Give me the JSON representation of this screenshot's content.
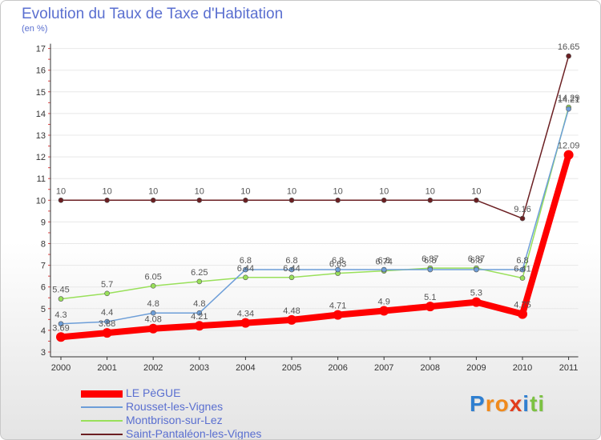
{
  "chart_data": {
    "type": "line",
    "title": "Evolution du Taux de Taxe d'Habitation",
    "subtitle": "(en %)",
    "xlabel": "",
    "ylabel": "",
    "categories": [
      "2000",
      "2001",
      "2002",
      "2003",
      "2004",
      "2005",
      "2006",
      "2007",
      "2008",
      "2009",
      "2010",
      "2011"
    ],
    "ylim": [
      3,
      17
    ],
    "yticks": [
      3,
      4,
      5,
      6,
      7,
      8,
      9,
      10,
      11,
      12,
      13,
      14,
      15,
      16,
      17
    ],
    "series": [
      {
        "name": "LE PèGUE",
        "color": "#ff0000",
        "values": [
          3.69,
          3.88,
          4.08,
          4.21,
          4.34,
          4.48,
          4.71,
          4.9,
          5.1,
          5.3,
          4.75,
          12.09
        ],
        "labels": [
          "3.69",
          "3.88",
          "4.08",
          "4.21",
          "4.34",
          "4.48",
          "4.71",
          "4.9",
          "5.1",
          "5.3",
          "4.75",
          "12.09"
        ]
      },
      {
        "name": "Rousset-les-Vignes",
        "color": "#6d9ed8",
        "values": [
          4.3,
          4.4,
          4.8,
          4.8,
          6.8,
          6.8,
          6.8,
          6.8,
          6.8,
          6.8,
          6.8,
          14.21
        ],
        "labels": [
          "4.3",
          "4.4",
          "4.8",
          "4.8",
          "6.8",
          "6.8",
          "6.8",
          "6.8",
          "6.8",
          "6.8",
          "6.8",
          "14.21"
        ]
      },
      {
        "name": "Montbrison-sur-Lez",
        "color": "#99e05a",
        "values": [
          5.45,
          5.7,
          6.05,
          6.25,
          6.44,
          6.44,
          6.63,
          6.74,
          6.87,
          6.87,
          6.41,
          14.29
        ],
        "labels": [
          "5.45",
          "5.7",
          "6.05",
          "6.25",
          "6.44",
          "6.44",
          "6.63",
          "6.74",
          "6.87",
          "6.87",
          "6.41",
          "14.29"
        ]
      },
      {
        "name": "Saint-Pantaléon-les-Vignes",
        "color": "#6b1f22",
        "values": [
          10,
          10,
          10,
          10,
          10,
          10,
          10,
          10,
          10,
          10,
          9.16,
          16.65
        ],
        "labels": [
          "10",
          "10",
          "10",
          "10",
          "10",
          "10",
          "10",
          "10",
          "10",
          "10",
          "9.16",
          "16.65"
        ]
      }
    ]
  },
  "logo": {
    "letters": [
      "P",
      "r",
      "o",
      "x",
      "i",
      "t",
      "i"
    ],
    "colors": [
      "#2f7fd0",
      "#f08a1c",
      "#f08a1c",
      "#e23c1c",
      "#2f7fd0",
      "#7cc242",
      "#7cc242"
    ]
  }
}
